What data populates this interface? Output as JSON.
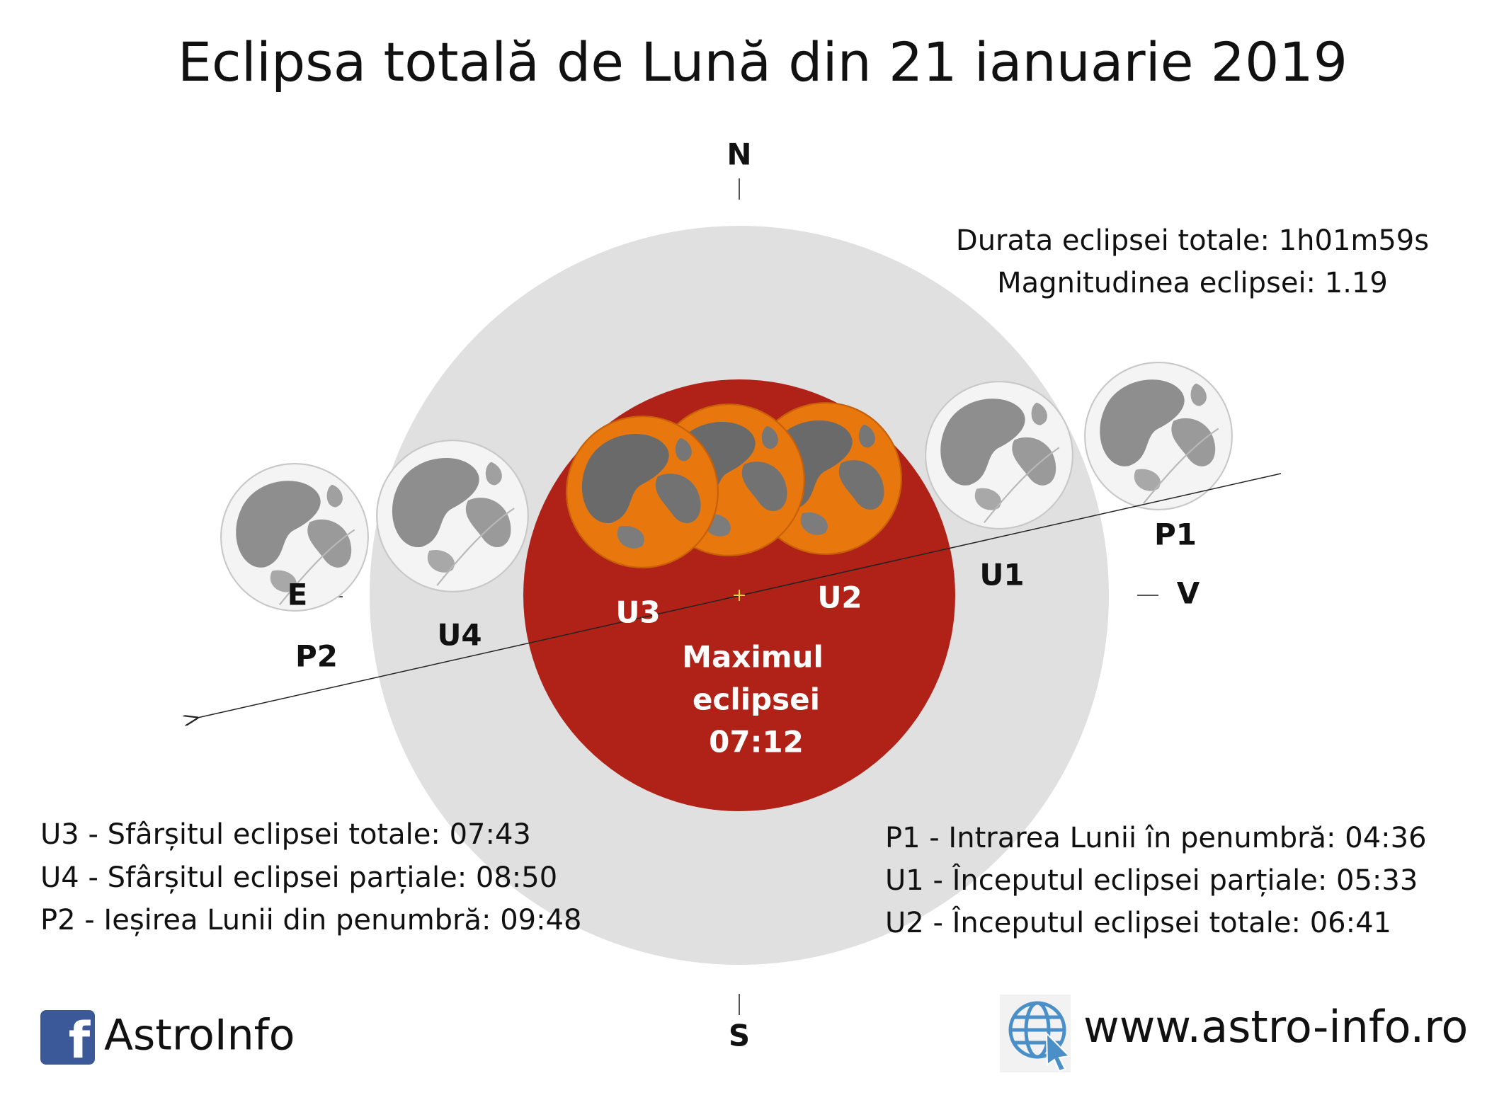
{
  "title": "Eclipsa totală de Lună din 21 ianuarie 2019",
  "compass": {
    "north": "N",
    "south": "S",
    "east": "E",
    "west": "V"
  },
  "stats": [
    "Durata eclipsei totale: 1h01m59s",
    "Magnitudinea eclipsei: 1.19"
  ],
  "phase_labels": {
    "p1": "P1",
    "u1": "U1",
    "u2": "U2",
    "u3": "U3",
    "u4": "U4",
    "p2": "P2"
  },
  "maximum": [
    "Maximul",
    "eclipsei",
    "07:12"
  ],
  "left_legend": [
    "U3 - Sfârșitul eclipsei totale: 07:43",
    "U4 - Sfârșitul eclipsei parțiale: 08:50",
    "P2 - Ieșirea Lunii din penumbră: 09:48"
  ],
  "right_legend": [
    "P1 - Intrarea Lunii în penumbră: 04:36",
    "U1 - Începutul eclipsei parțiale: 05:33",
    "U2 - Începutul eclipsei totale: 06:41"
  ],
  "footer": {
    "facebook_icon": "f",
    "brand": "AstroInfo",
    "website": "www.astro-info.ro"
  }
}
